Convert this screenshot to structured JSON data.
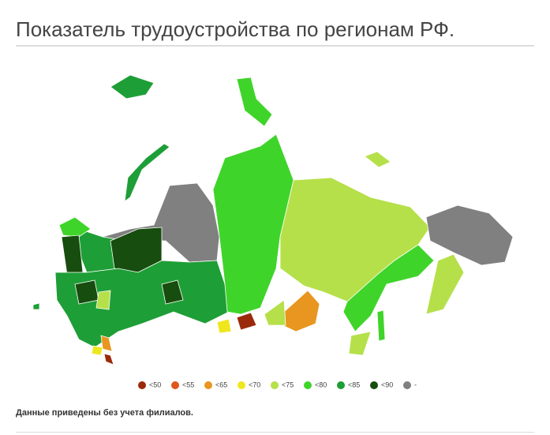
{
  "header": {
    "title": "Показатель трудоустройства по регионам РФ."
  },
  "legend": [
    {
      "label": "<50",
      "color": "#9b2a0a"
    },
    {
      "label": "<55",
      "color": "#e0561b"
    },
    {
      "label": "<65",
      "color": "#e8961f"
    },
    {
      "label": "<70",
      "color": "#f0e61e"
    },
    {
      "label": "<75",
      "color": "#b5e04a"
    },
    {
      "label": "<80",
      "color": "#3fd42a"
    },
    {
      "label": "<85",
      "color": "#1e9e36"
    },
    {
      "label": "<90",
      "color": "#174d0e"
    },
    {
      "label": "-",
      "color": "#808080"
    }
  ],
  "footnote": "Данные приведены без учета филиалов."
}
